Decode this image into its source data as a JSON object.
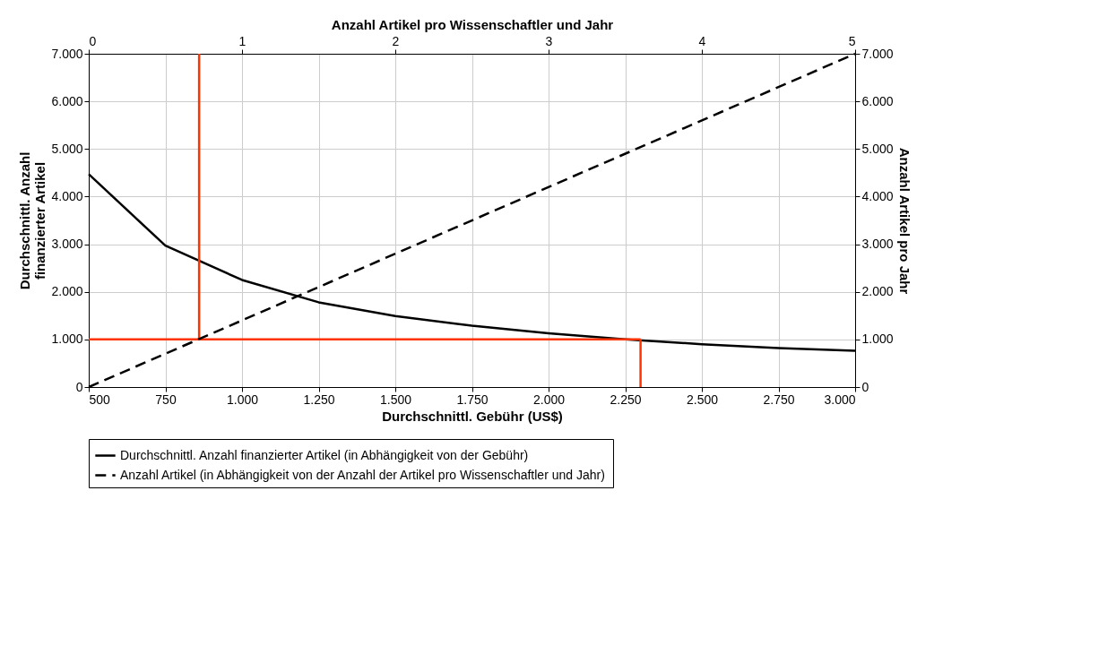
{
  "chart_data": {
    "type": "line",
    "xlabel": "Durchschnittl. Gebühr (US$)",
    "ylabel": "Durchschnittl. Anzahl\nfinanzierter Artikel",
    "y2label": "Anzahl Artikel pro Jahr",
    "x2label": "Anzahl Artikel pro Wissenschaftler und Jahr",
    "xlim": [
      500,
      3000
    ],
    "xticks": [
      500,
      {
        "value": 750,
        "label": "750"
      },
      {
        "value": 1000,
        "label": "1.000"
      },
      {
        "value": 1250,
        "label": "1.250"
      },
      {
        "value": 1500,
        "label": "1.500"
      },
      {
        "value": 1750,
        "label": "1.750"
      },
      {
        "value": 2000,
        "label": "2.000"
      },
      {
        "value": 2250,
        "label": "2.250"
      },
      {
        "value": 2500,
        "label": "2.500"
      },
      {
        "value": 2750,
        "label": "2.750"
      },
      {
        "value": 3000,
        "label": "3.000"
      }
    ],
    "ylim": [
      0,
      7000
    ],
    "yticks": [
      0,
      {
        "value": 1000,
        "label": "1.000"
      },
      {
        "value": 2000,
        "label": "2.000"
      },
      {
        "value": 3000,
        "label": "3.000"
      },
      {
        "value": 4000,
        "label": "4.000"
      },
      {
        "value": 5000,
        "label": "5.000"
      },
      {
        "value": 6000,
        "label": "6.000"
      },
      {
        "value": 7000,
        "label": "7.000"
      }
    ],
    "y2lim": [
      0,
      7000
    ],
    "y2ticks": [
      0,
      {
        "value": 1000,
        "label": "1.000"
      },
      {
        "value": 2000,
        "label": "2.000"
      },
      {
        "value": 3000,
        "label": "3.000"
      },
      {
        "value": 4000,
        "label": "4.000"
      },
      {
        "value": 5000,
        "label": "5.000"
      },
      {
        "value": 6000,
        "label": "6.000"
      },
      {
        "value": 7000,
        "label": "7.000"
      }
    ],
    "x2lim": [
      0,
      5
    ],
    "x2ticks": [
      0,
      1,
      2,
      3,
      4,
      5
    ],
    "grid": true,
    "legend": "bottom",
    "marker": "none",
    "series": [
      {
        "name": "Durchschnittl. Anzahl finanzierter Artikel (in Abhängigkeit von der Gebühr)",
        "color": "#000000",
        "line_style": "solid",
        "x": [
          500,
          750,
          1000,
          1250,
          1500,
          1750,
          2000,
          2250,
          2500,
          2750,
          3000
        ],
        "values": [
          4470,
          2970,
          2250,
          1780,
          1490,
          1290,
          1130,
          1000,
          900,
          820,
          760
        ]
      },
      {
        "name": "Anzahl Artikel (in Abhängigkeit von der Anzahl der Artikel pro Wissenschaftler und Jahr)",
        "color": "#000000",
        "line_style": "dashed",
        "axis": "x2",
        "x": [
          0,
          5
        ],
        "values": [
          0,
          7000
        ]
      },
      {
        "color": "#ff3300",
        "line_style": "solid",
        "x": [
          860,
          860
        ],
        "values": [
          1000,
          7000
        ]
      },
      {
        "color": "#ff3300",
        "line_style": "solid",
        "x": [
          500,
          2300
        ],
        "values": [
          1000,
          1000
        ]
      },
      {
        "color": "#ff3300",
        "line_style": "solid",
        "x": [
          2300,
          2300
        ],
        "values": [
          1000,
          0
        ]
      }
    ]
  }
}
